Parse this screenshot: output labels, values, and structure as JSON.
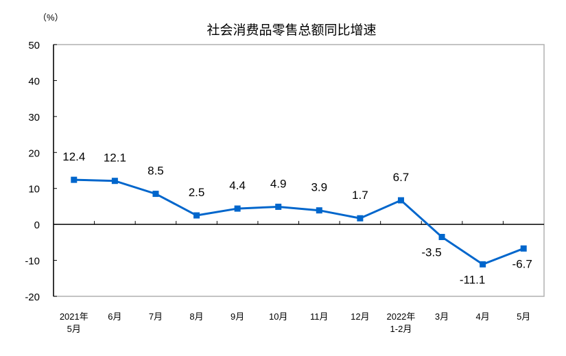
{
  "chart_data": {
    "type": "line",
    "title": "社会消费品零售总额同比增速",
    "ylabel": "（%）",
    "xlabel": "",
    "ylim": [
      -20,
      50
    ],
    "yticks": [
      50,
      40,
      30,
      20,
      10,
      0,
      -10,
      -20
    ],
    "grid": false,
    "categories": [
      [
        "2021年",
        "5月"
      ],
      [
        "6月"
      ],
      [
        "7月"
      ],
      [
        "8月"
      ],
      [
        "9月"
      ],
      [
        "10月"
      ],
      [
        "11月"
      ],
      [
        "12月"
      ],
      [
        "2022年",
        "1-2月"
      ],
      [
        "3月"
      ],
      [
        "4月"
      ],
      [
        "5月"
      ]
    ],
    "series": [
      {
        "name": "社会消费品零售总额同比增速",
        "color": "#0066CC",
        "values": [
          12.4,
          12.1,
          8.5,
          2.5,
          4.4,
          4.9,
          3.9,
          1.7,
          6.7,
          -3.5,
          -11.1,
          -6.7
        ]
      }
    ]
  }
}
